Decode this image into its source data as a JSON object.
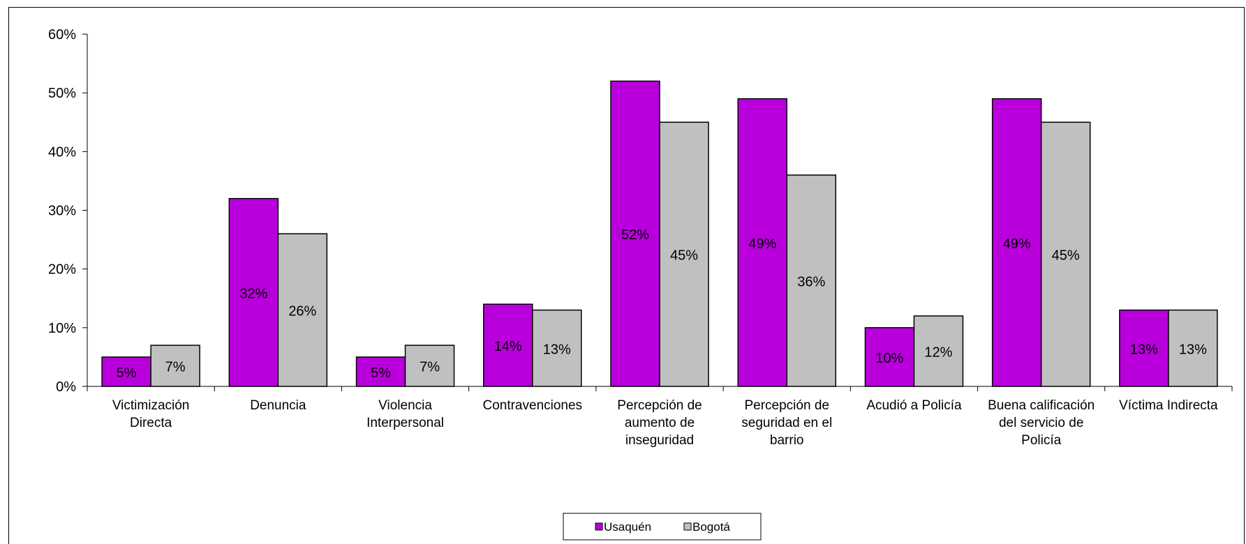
{
  "chart_data": {
    "type": "bar",
    "categories": [
      [
        "Victimización",
        "Directa"
      ],
      [
        "Denuncia"
      ],
      [
        "Violencia",
        "Interpersonal"
      ],
      [
        "Contravenciones"
      ],
      [
        "Percepción de",
        "aumento de",
        "inseguridad"
      ],
      [
        "Percepción de",
        "seguridad en el",
        "barrio"
      ],
      [
        "Acudió a Policía"
      ],
      [
        "Buena calificación",
        "del servicio de",
        "Policía"
      ],
      [
        "Víctima Indirecta"
      ]
    ],
    "series": [
      {
        "name": "Usaquén",
        "color": "#b900dc",
        "values": [
          5,
          32,
          5,
          14,
          52,
          49,
          10,
          49,
          13
        ],
        "labels": [
          "5%",
          "32%",
          "5%",
          "14%",
          "52%",
          "49%",
          "10%",
          "49%",
          "13%"
        ]
      },
      {
        "name": "Bogotá",
        "color": "#c0c0c0",
        "values": [
          7,
          26,
          7,
          13,
          45,
          36,
          12,
          45,
          13
        ],
        "labels": [
          "7%",
          "26%",
          "7%",
          "13%",
          "45%",
          "36%",
          "12%",
          "45%",
          "13%"
        ]
      }
    ],
    "ylim": [
      0,
      60
    ],
    "yticks": [
      "0%",
      "10%",
      "20%",
      "30%",
      "40%",
      "50%",
      "60%"
    ],
    "legend_position": "bottom",
    "grid": false
  }
}
